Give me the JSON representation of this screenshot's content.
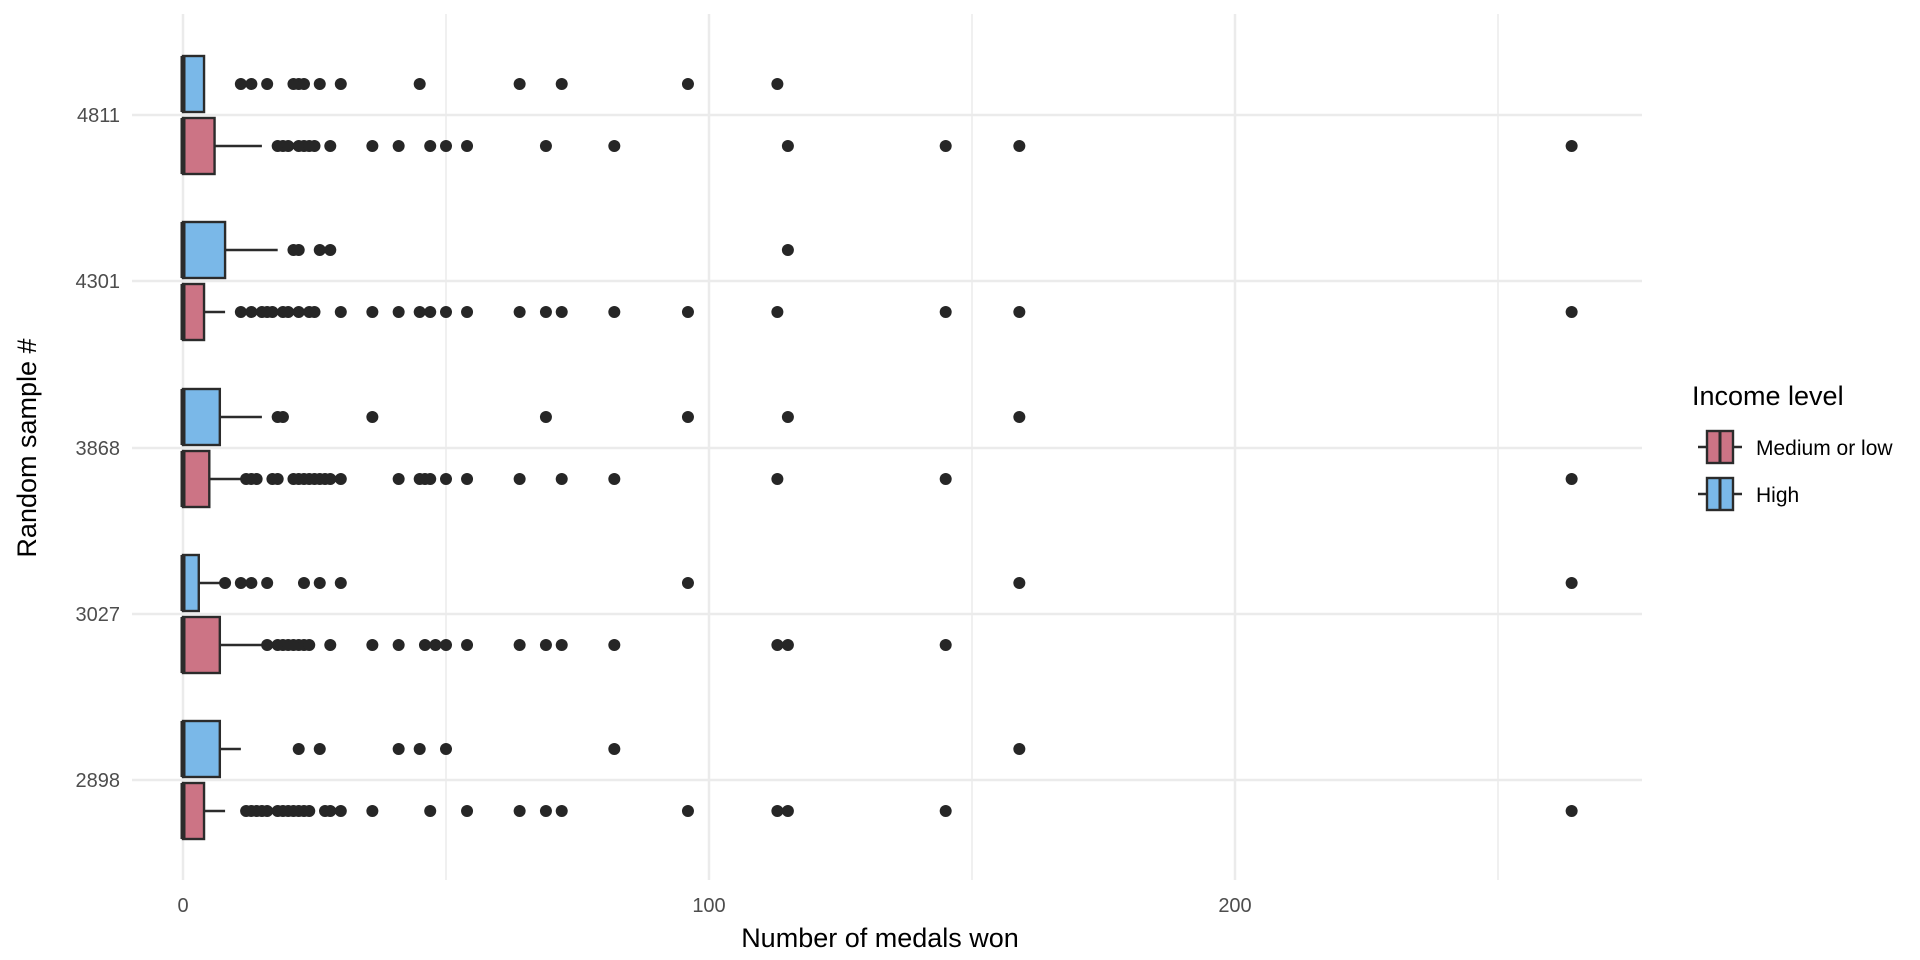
{
  "chart_data": {
    "type": "boxplot",
    "orientation": "horizontal",
    "title": "",
    "xlabel": "Number of medals won",
    "ylabel": "Random sample #",
    "xlim": [
      -12,
      277
    ],
    "x_ticks": [
      0,
      100,
      200
    ],
    "x_tick_labels": [
      "0",
      "100",
      "200"
    ],
    "grid": true,
    "legend": {
      "title": "Income level",
      "position": "right",
      "entries": [
        {
          "name": "Medium or low",
          "color": "#cc7485"
        },
        {
          "name": "High",
          "color": "#7ab8e8"
        }
      ]
    },
    "categories": [
      "2898",
      "3027",
      "3868",
      "4301",
      "4811"
    ],
    "series": [
      {
        "name": "Medium or low",
        "color": "#cc7485",
        "boxes": [
          {
            "category": "2898",
            "min": 0,
            "q1": 0,
            "median": 0,
            "q3": 4,
            "max": 8,
            "outliers": [
              12,
              13,
              14,
              15,
              16,
              18,
              19,
              20,
              21,
              22,
              23,
              24,
              27,
              28,
              30,
              36,
              47,
              54,
              64,
              69,
              72,
              96,
              113,
              115,
              145,
              264
            ]
          },
          {
            "category": "3027",
            "min": 0,
            "q1": 0,
            "median": 0,
            "q3": 7,
            "max": 15,
            "outliers": [
              16,
              18,
              19,
              20,
              21,
              22,
              23,
              24,
              28,
              36,
              41,
              46,
              48,
              50,
              54,
              64,
              69,
              72,
              82,
              113,
              115,
              145
            ]
          },
          {
            "category": "3868",
            "min": 0,
            "q1": 0,
            "median": 0,
            "q3": 5,
            "max": 12,
            "outliers": [
              12,
              13,
              14,
              17,
              18,
              21,
              22,
              23,
              24,
              25,
              26,
              27,
              28,
              30,
              41,
              45,
              46,
              47,
              50,
              54,
              64,
              72,
              82,
              113,
              145,
              264
            ]
          },
          {
            "category": "4301",
            "min": 0,
            "q1": 0,
            "median": 0,
            "q3": 4,
            "max": 8,
            "outliers": [
              11,
              13,
              15,
              16,
              17,
              19,
              20,
              22,
              24,
              25,
              30,
              36,
              41,
              45,
              47,
              50,
              54,
              64,
              69,
              72,
              82,
              96,
              113,
              145,
              159,
              264
            ]
          },
          {
            "category": "4811",
            "min": 0,
            "q1": 0,
            "median": 0,
            "q3": 6,
            "max": 15,
            "outliers": [
              18,
              19,
              20,
              22,
              23,
              24,
              25,
              28,
              36,
              41,
              47,
              50,
              54,
              69,
              82,
              115,
              145,
              159,
              264
            ]
          }
        ]
      },
      {
        "name": "High",
        "color": "#7ab8e8",
        "boxes": [
          {
            "category": "2898",
            "min": 0,
            "q1": 0,
            "median": 0,
            "q3": 7,
            "max": 11,
            "outliers": [
              22,
              26,
              41,
              45,
              50,
              82,
              159
            ]
          },
          {
            "category": "3027",
            "min": 0,
            "q1": 0,
            "median": 0,
            "q3": 3,
            "max": 7,
            "outliers": [
              8,
              11,
              13,
              16,
              23,
              26,
              30,
              96,
              159,
              264
            ]
          },
          {
            "category": "3868",
            "min": 0,
            "q1": 0,
            "median": 0,
            "q3": 7,
            "max": 15,
            "outliers": [
              18,
              19,
              36,
              69,
              96,
              115,
              159
            ]
          },
          {
            "category": "4301",
            "min": 0,
            "q1": 0,
            "median": 0,
            "q3": 8,
            "max": 18,
            "outliers": [
              21,
              22,
              26,
              28,
              115
            ]
          },
          {
            "category": "4811",
            "min": 0,
            "q1": 0,
            "median": 0,
            "q3": 4,
            "max": 4,
            "outliers": [
              11,
              13,
              16,
              21,
              22,
              23,
              26,
              30,
              45,
              64,
              72,
              96,
              113
            ]
          }
        ]
      }
    ]
  }
}
